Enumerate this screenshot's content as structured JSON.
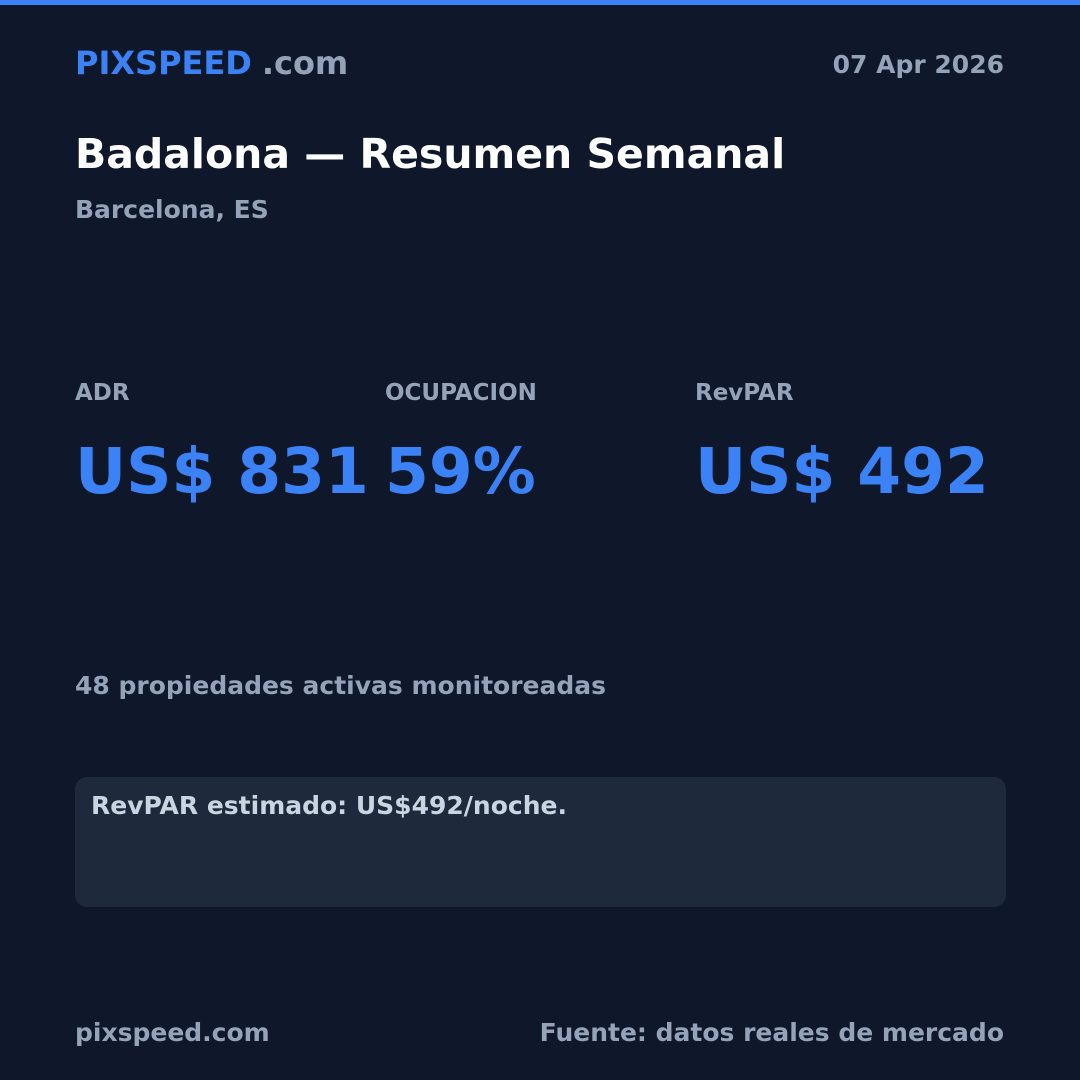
{
  "colors": {
    "accent": "#3b82f6",
    "background": "#0f172a",
    "muted": "#94a3b8",
    "card": "#1e293b"
  },
  "header": {
    "brand": "PIXSPEED",
    "tld": ".com",
    "date": "07 Apr 2026"
  },
  "title": "Badalona — Resumen Semanal",
  "subtitle": "Barcelona, ES",
  "metrics": [
    {
      "label": "ADR",
      "value": "US$ 831"
    },
    {
      "label": "OCUPACION",
      "value": "59%"
    },
    {
      "label": "RevPAR",
      "value": "US$ 492"
    }
  ],
  "properties_note": "48 propiedades activas monitoreadas",
  "card": {
    "text": "RevPAR estimado: US$492/noche."
  },
  "footer": {
    "site": "pixspeed.com",
    "source": "Fuente: datos reales de mercado"
  }
}
